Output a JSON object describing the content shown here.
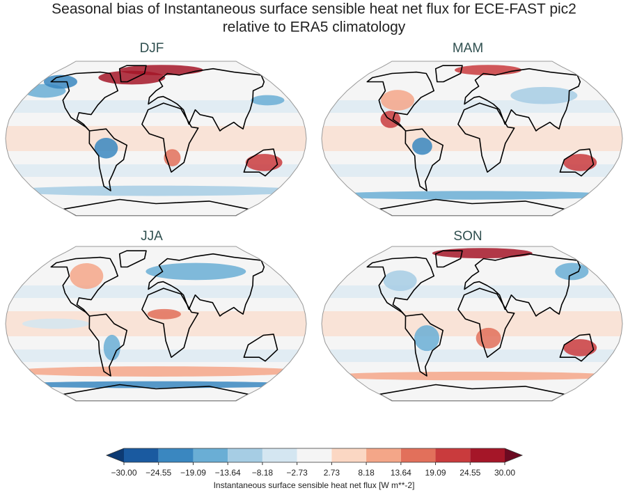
{
  "title": [
    "Seasonal bias of Instantaneous surface sensible heat net flux for ECE-FAST pic2",
    "relative to ERA5 climatology"
  ],
  "panels": [
    {
      "title": "DJF"
    },
    {
      "title": "MAM"
    },
    {
      "title": "JJA"
    },
    {
      "title": "SON"
    }
  ],
  "colorbar": {
    "ticks": [
      {
        "value": -30,
        "label": "−30.00"
      },
      {
        "value": -24.55,
        "label": "−24.55"
      },
      {
        "value": -19.09,
        "label": "−19.09"
      },
      {
        "value": -13.64,
        "label": "−13.64"
      },
      {
        "value": -8.18,
        "label": "−8.18"
      },
      {
        "value": -2.73,
        "label": "−2.73"
      },
      {
        "value": 2.73,
        "label": "2.73"
      },
      {
        "value": 8.18,
        "label": "8.18"
      },
      {
        "value": 13.64,
        "label": "13.64"
      },
      {
        "value": 19.09,
        "label": "19.09"
      },
      {
        "value": 24.55,
        "label": "24.55"
      },
      {
        "value": 30,
        "label": "30.00"
      }
    ],
    "colors": [
      "#1a5aa0",
      "#3a87c0",
      "#6aaed5",
      "#a6cde4",
      "#d4e6f1",
      "#f5f5f5",
      "#fbd7c3",
      "#f4a688",
      "#e2705b",
      "#c93b3d",
      "#a51628"
    ],
    "under_color": "#0d3a73",
    "over_color": "#6b0a21",
    "label": "Instantaneous surface sensible heat net flux [W m**-2]"
  }
}
